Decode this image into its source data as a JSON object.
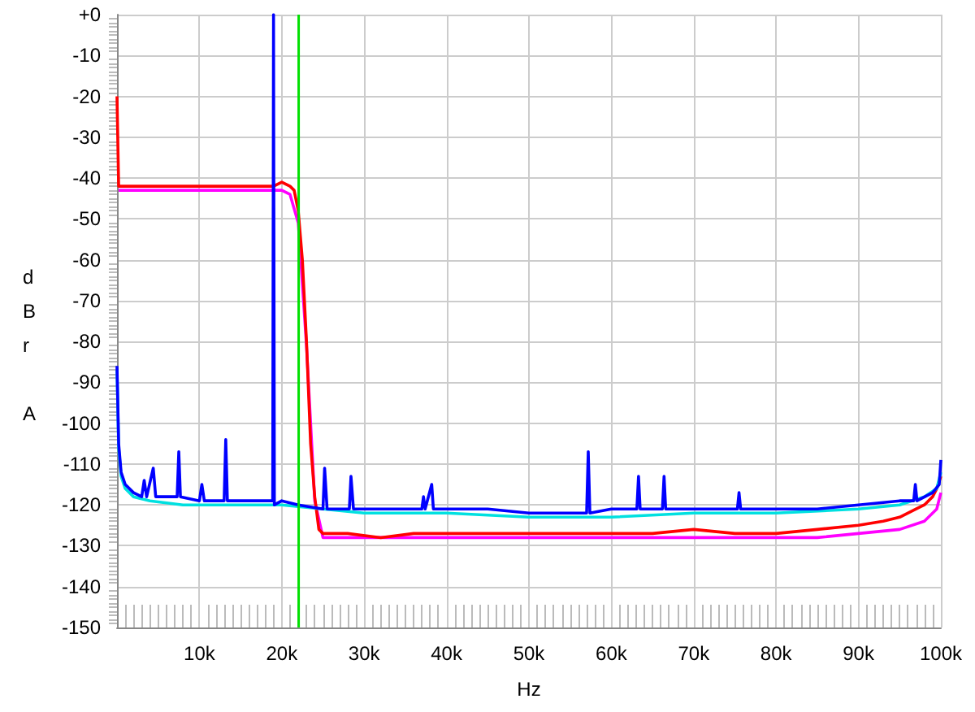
{
  "chart_data": {
    "type": "line",
    "xlabel": "Hz",
    "ylabel": "dBr A",
    "xlim": [
      0,
      100000
    ],
    "ylim": [
      -150,
      0
    ],
    "xticks": [
      {
        "value": 10000,
        "label": "10k"
      },
      {
        "value": 20000,
        "label": "20k"
      },
      {
        "value": 30000,
        "label": "30k"
      },
      {
        "value": 40000,
        "label": "40k"
      },
      {
        "value": 50000,
        "label": "50k"
      },
      {
        "value": 60000,
        "label": "60k"
      },
      {
        "value": 70000,
        "label": "70k"
      },
      {
        "value": 80000,
        "label": "80k"
      },
      {
        "value": 90000,
        "label": "90k"
      },
      {
        "value": 100000,
        "label": "100k"
      }
    ],
    "yticks": [
      {
        "value": 0,
        "label": "+0"
      },
      -10,
      -20,
      -30,
      -40,
      -50,
      -60,
      -70,
      -80,
      -90,
      -100,
      -110,
      -120,
      -130,
      -140,
      -150
    ],
    "grid": true,
    "marker": "none",
    "line_style": "solid",
    "ref_lines": [
      {
        "axis": "x",
        "value": 22050,
        "color": "#00e000"
      }
    ],
    "series": [
      {
        "color": "#ff00ff",
        "x": [
          200,
          5000,
          10000,
          15000,
          20000,
          21000,
          22000,
          23000,
          24000,
          25000,
          30000,
          40000,
          50000,
          60000,
          70000,
          80000,
          85000,
          90000,
          95000,
          98000,
          99500,
          100000
        ],
        "values": [
          -43,
          -43,
          -43,
          -43,
          -43,
          -44,
          -51,
          -81,
          -119,
          -128,
          -128,
          -128,
          -128,
          -128,
          -128,
          -128,
          -128,
          -127,
          -126,
          -124,
          -121,
          -117
        ]
      },
      {
        "color": "#ff0000",
        "x": [
          0,
          200,
          2000,
          5000,
          8000,
          10000,
          13000,
          16000,
          19000,
          20000,
          21000,
          21500,
          22000,
          22500,
          23000,
          23500,
          24000,
          24500,
          25000,
          28000,
          32000,
          36000,
          40000,
          45000,
          50000,
          55000,
          60000,
          65000,
          70000,
          75000,
          80000,
          85000,
          90000,
          93000,
          95000,
          97000,
          98000,
          99000,
          99500,
          100000
        ],
        "values": [
          -20,
          -42,
          -42,
          -42,
          -42,
          -42,
          -42,
          -42,
          -42,
          -41,
          -42,
          -43,
          -48,
          -60,
          -80,
          -105,
          -118,
          -126,
          -127,
          -127,
          -128,
          -127,
          -127,
          -127,
          -127,
          -127,
          -127,
          -127,
          -126,
          -127,
          -127,
          -126,
          -125,
          -124,
          -123,
          -121,
          -120,
          -118,
          -116,
          -113
        ]
      },
      {
        "color": "#00e0e0",
        "x": [
          0,
          200,
          500,
          1000,
          2000,
          4000,
          8000,
          12000,
          16000,
          20000,
          25000,
          30000,
          40000,
          50000,
          60000,
          70000,
          80000,
          90000,
          95000,
          98000,
          99500,
          100000
        ],
        "values": [
          -87,
          -106,
          -113,
          -116,
          -118,
          -119,
          -120,
          -120,
          -120,
          -120,
          -121,
          -122,
          -122,
          -123,
          -123,
          -122,
          -122,
          -121,
          -120,
          -118,
          -116,
          -112
        ]
      },
      {
        "color": "#0000ff",
        "x": [
          0,
          200,
          500,
          1000,
          2000,
          3000,
          3300,
          3600,
          4400,
          4700,
          5000,
          7300,
          7500,
          7700,
          10000,
          10300,
          10600,
          11000,
          13000,
          13200,
          13400,
          15000,
          18000,
          18900,
          19000,
          19100,
          20000,
          22000,
          25000,
          25200,
          25500,
          28200,
          28400,
          28700,
          35000,
          37000,
          37200,
          37400,
          38200,
          38400,
          38700,
          45000,
          50000,
          55000,
          57000,
          57200,
          57400,
          60000,
          63100,
          63300,
          63500,
          66200,
          66400,
          66600,
          70000,
          75300,
          75500,
          75700,
          80000,
          85000,
          90000,
          95000,
          96700,
          96900,
          97100,
          99000,
          99800,
          100000
        ],
        "values": [
          -86,
          -105,
          -112,
          -115,
          -117,
          -118,
          -114,
          -118,
          -111,
          -118,
          -118,
          -118,
          -107,
          -118,
          -119,
          -115,
          -119,
          -119,
          -119,
          -104,
          -119,
          -119,
          -119,
          -119,
          0,
          -120,
          -119,
          -120,
          -121,
          -111,
          -121,
          -121,
          -113,
          -121,
          -121,
          -121,
          -118,
          -121,
          -115,
          -121,
          -121,
          -121,
          -122,
          -122,
          -122,
          -107,
          -122,
          -121,
          -121,
          -113,
          -121,
          -121,
          -113,
          -121,
          -121,
          -121,
          -117,
          -121,
          -121,
          -121,
          -120,
          -119,
          -119,
          -115,
          -119,
          -117,
          -115,
          -109
        ]
      }
    ]
  }
}
